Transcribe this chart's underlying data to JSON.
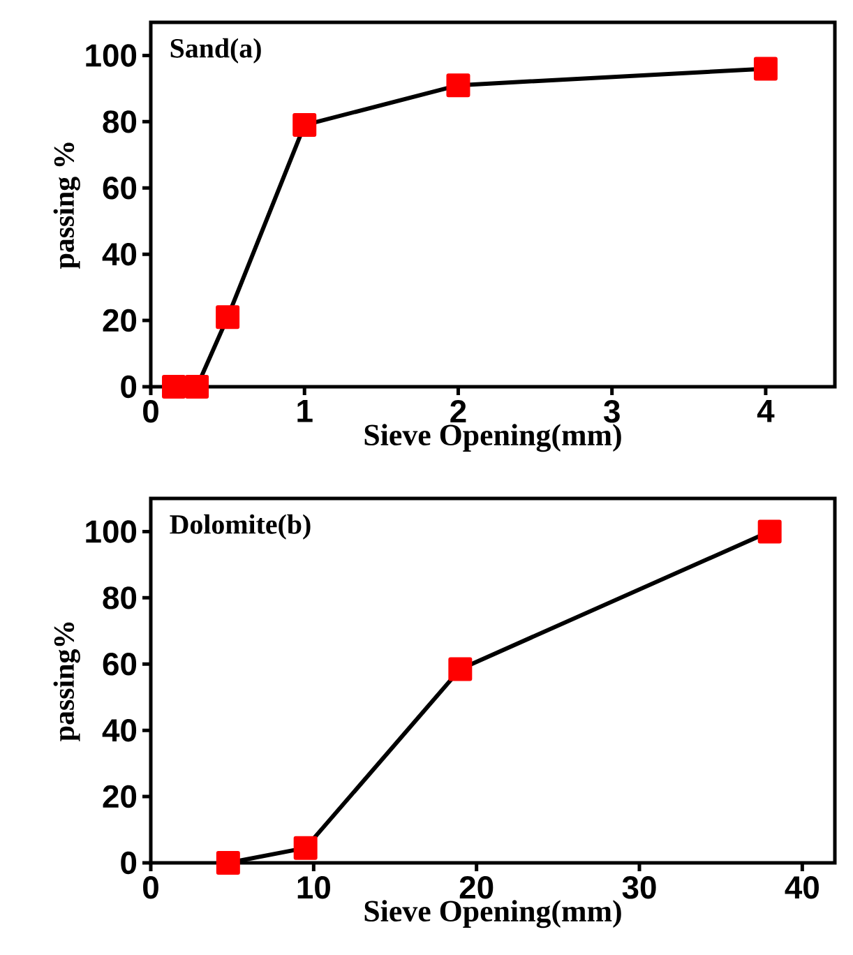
{
  "chart_data": [
    {
      "type": "line",
      "title": "Sand(a)",
      "xlabel": "Sieve Opening(mm)",
      "ylabel": "passing %",
      "x": [
        0.15,
        0.3,
        0.5,
        1,
        2,
        4
      ],
      "series": [
        {
          "color": "#ff0000",
          "values": [
            0,
            0,
            21,
            79,
            91,
            96
          ]
        }
      ],
      "xlim": [
        0,
        4.45
      ],
      "ylim": [
        0,
        110
      ],
      "xticks": [
        0,
        1,
        2,
        3,
        4
      ],
      "yticks": [
        0,
        20,
        40,
        60,
        80,
        100
      ],
      "marker": "square",
      "line_style": "solid"
    },
    {
      "type": "line",
      "title": "Dolomite(b)",
      "xlabel": "Sieve Opening(mm)",
      "ylabel": "passing%",
      "x": [
        4.75,
        9.5,
        19,
        38
      ],
      "series": [
        {
          "color": "#ff0000",
          "values": [
            0,
            4.5,
            58.5,
            100
          ]
        }
      ],
      "xlim": [
        0,
        42
      ],
      "ylim": [
        0,
        110
      ],
      "xticks": [
        0,
        10,
        20,
        30,
        40
      ],
      "yticks": [
        0,
        20,
        40,
        60,
        80,
        100
      ],
      "marker": "square",
      "line_style": "solid"
    }
  ]
}
